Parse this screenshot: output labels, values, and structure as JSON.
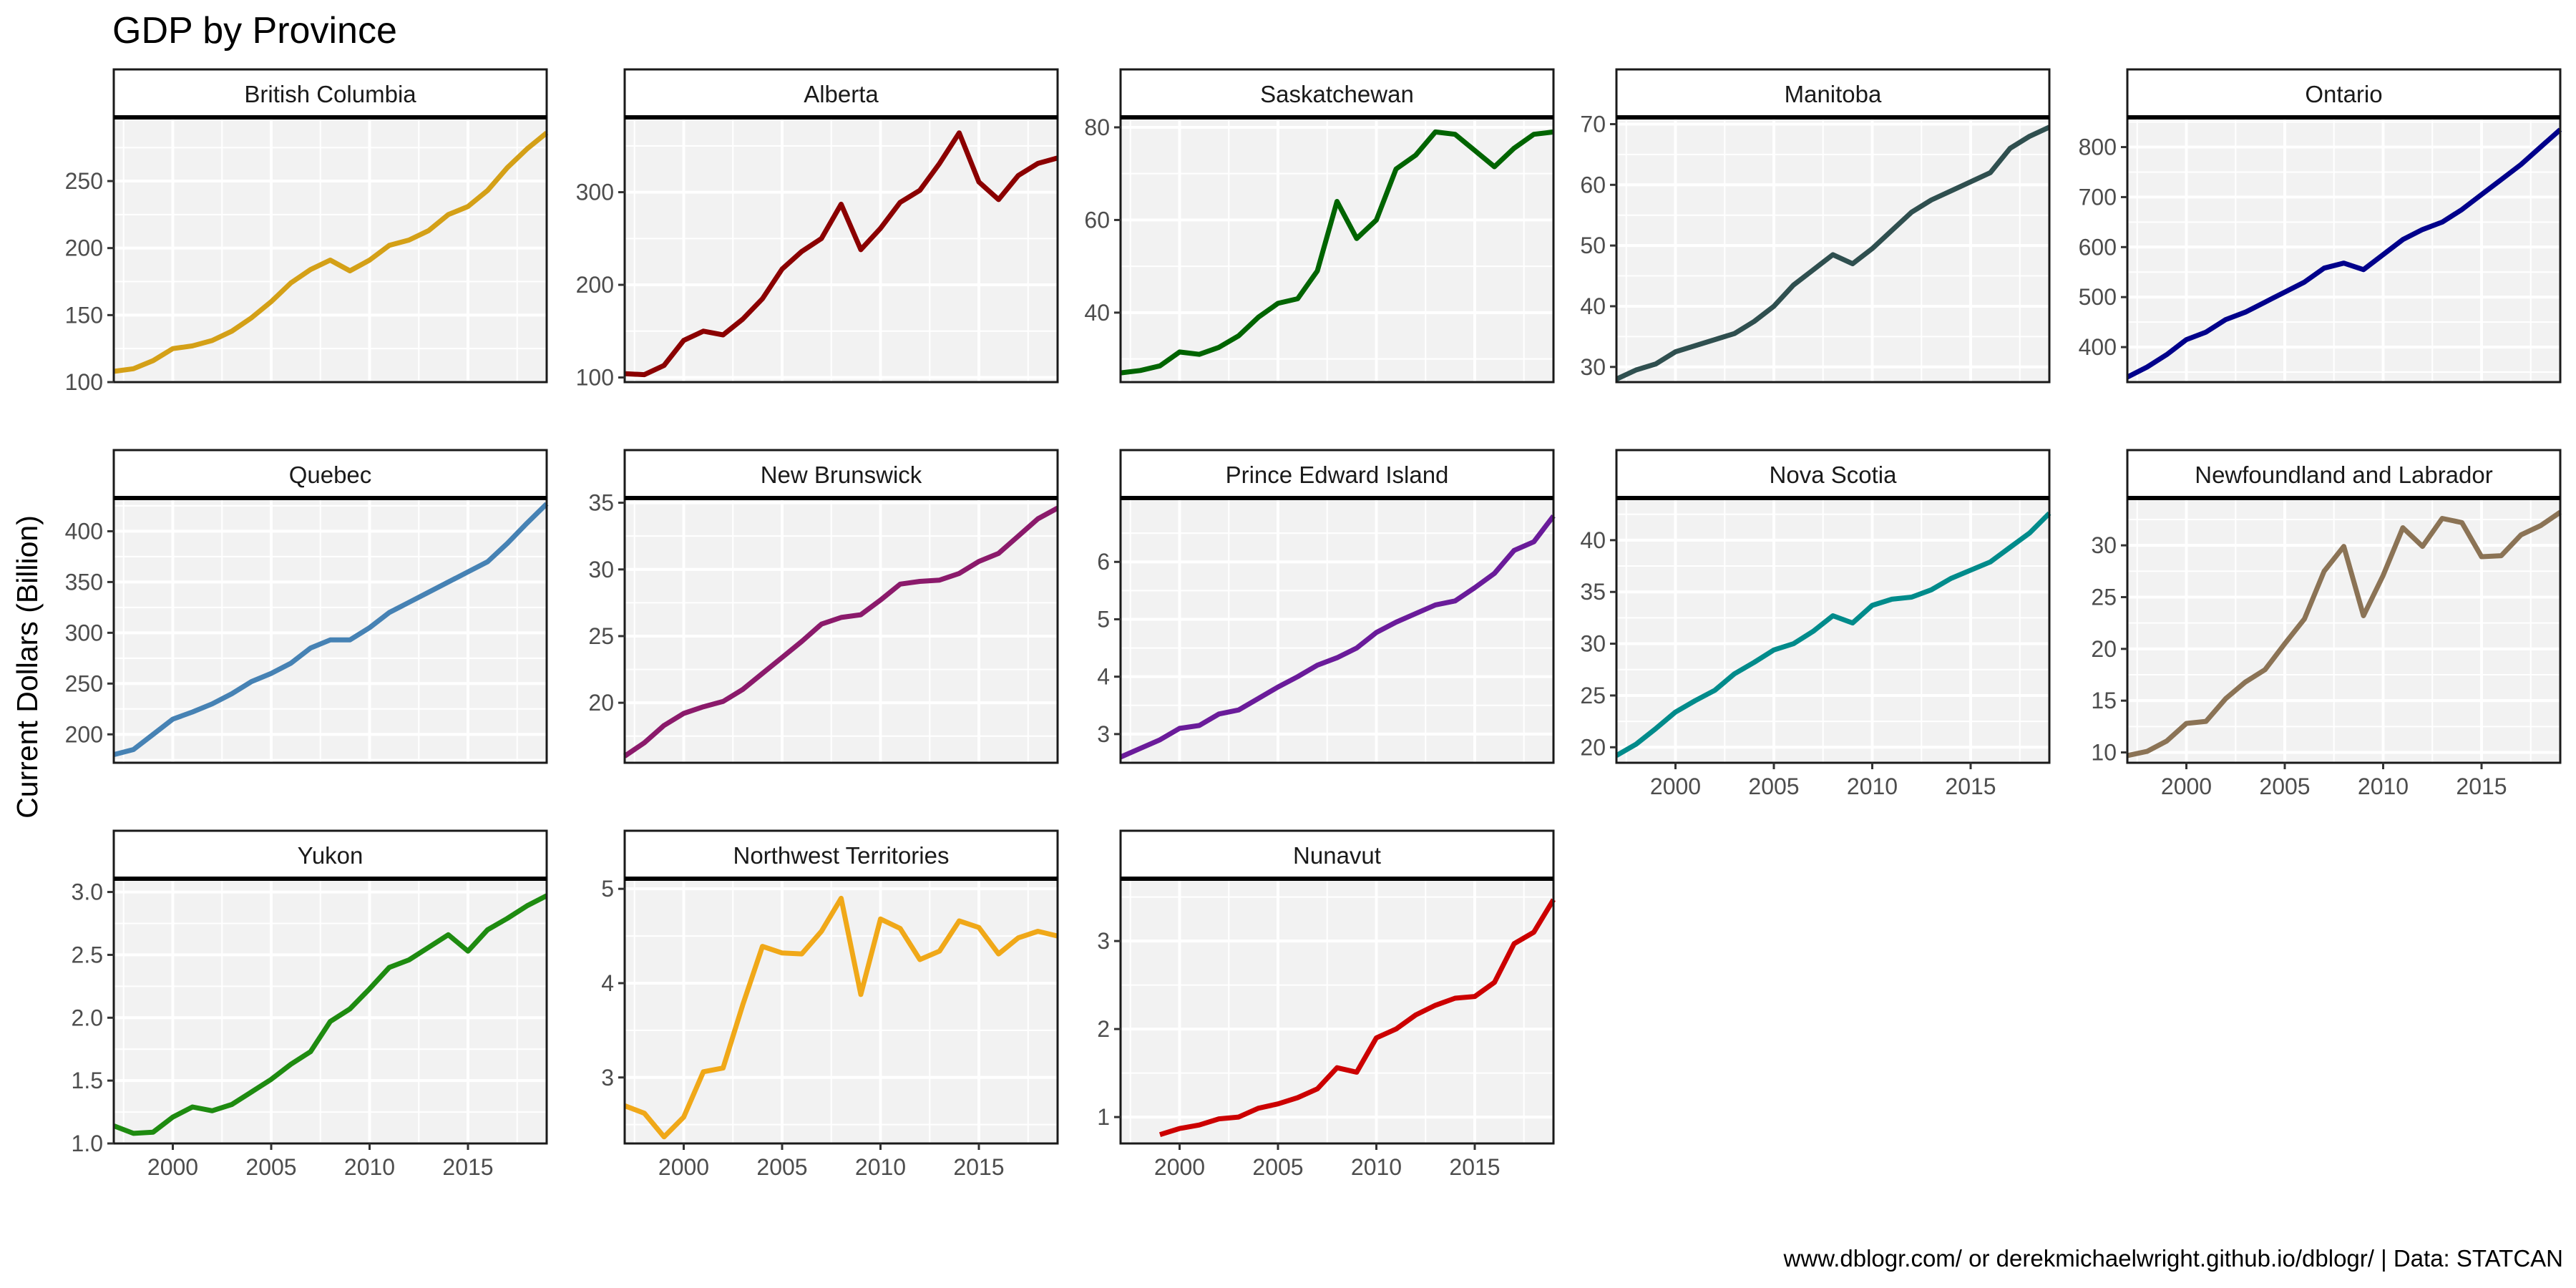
{
  "chart_data": {
    "type": "line",
    "title": "GDP by Province",
    "ylabel": "Current Dollars (Billion)",
    "xlabel": "",
    "caption": "www.dblogr.com/ or derekmichaelwright.github.io/dblogr/ | Data: STATCAN",
    "x_range": [
      1997,
      2019
    ],
    "x_ticks": [
      2000,
      2005,
      2010,
      2015
    ],
    "grid": true,
    "legend": "none",
    "panels": [
      {
        "name": "British Columbia",
        "color": "#D4A017",
        "ylim": [
          100,
          297
        ],
        "y_ticks": [
          100,
          150,
          200,
          250
        ],
        "x": [
          1997,
          1998,
          1999,
          2000,
          2001,
          2002,
          2003,
          2004,
          2005,
          2006,
          2007,
          2008,
          2009,
          2010,
          2011,
          2012,
          2013,
          2014,
          2015,
          2016,
          2017,
          2018,
          2019
        ],
        "values": [
          108,
          110,
          116,
          125,
          127,
          131,
          138,
          148,
          160,
          174,
          184,
          191,
          183,
          191,
          202,
          206,
          213,
          225,
          231,
          243,
          260,
          274,
          286
        ]
      },
      {
        "name": "Alberta",
        "color": "#8B0000",
        "ylim": [
          95,
          380
        ],
        "y_ticks": [
          100,
          200,
          300
        ],
        "x": [
          1997,
          1998,
          1999,
          2000,
          2001,
          2002,
          2003,
          2004,
          2005,
          2006,
          2007,
          2008,
          2009,
          2010,
          2011,
          2012,
          2013,
          2014,
          2015,
          2016,
          2017,
          2018,
          2019
        ],
        "values": [
          104,
          103,
          113,
          140,
          150,
          146,
          163,
          185,
          217,
          236,
          250,
          287,
          238,
          261,
          289,
          302,
          331,
          364,
          311,
          292,
          318,
          331,
          337
        ]
      },
      {
        "name": "Saskatchewan",
        "color": "#006400",
        "ylim": [
          25,
          82
        ],
        "y_ticks": [
          40,
          60,
          80
        ],
        "x": [
          1997,
          1998,
          1999,
          2000,
          2001,
          2002,
          2003,
          2004,
          2005,
          2006,
          2007,
          2008,
          2009,
          2010,
          2011,
          2012,
          2013,
          2014,
          2015,
          2016,
          2017,
          2018,
          2019
        ],
        "values": [
          27,
          27.5,
          28.5,
          31.5,
          31,
          32.5,
          35,
          39,
          42,
          43,
          49,
          64,
          56,
          60,
          71,
          74,
          79,
          78.5,
          75,
          71.5,
          75.5,
          78.5,
          79
        ]
      },
      {
        "name": "Manitoba",
        "color": "#2F4F4F",
        "ylim": [
          27.5,
          71
        ],
        "y_ticks": [
          30,
          40,
          50,
          60,
          70
        ],
        "x": [
          1997,
          1998,
          1999,
          2000,
          2001,
          2002,
          2003,
          2004,
          2005,
          2006,
          2007,
          2008,
          2009,
          2010,
          2011,
          2012,
          2013,
          2014,
          2015,
          2016,
          2017,
          2018,
          2019
        ],
        "values": [
          28,
          29.5,
          30.5,
          32.5,
          33.5,
          34.5,
          35.5,
          37.5,
          40,
          43.5,
          46,
          48.5,
          47,
          49.5,
          52.5,
          55.5,
          57.5,
          59,
          60.5,
          62,
          66,
          68,
          69.5
        ]
      },
      {
        "name": "Ontario",
        "color": "#00008B",
        "ylim": [
          330,
          858
        ],
        "y_ticks": [
          400,
          500,
          600,
          700,
          800
        ],
        "x": [
          1997,
          1998,
          1999,
          2000,
          2001,
          2002,
          2003,
          2004,
          2005,
          2006,
          2007,
          2008,
          2009,
          2010,
          2011,
          2012,
          2013,
          2014,
          2015,
          2016,
          2017,
          2018,
          2019
        ],
        "values": [
          340,
          360,
          385,
          415,
          430,
          455,
          470,
          490,
          510,
          530,
          558,
          568,
          555,
          585,
          615,
          635,
          650,
          675,
          705,
          735,
          765,
          800,
          835
        ]
      },
      {
        "name": "Quebec",
        "color": "#4682B4",
        "ylim": [
          172,
          432
        ],
        "y_ticks": [
          200,
          250,
          300,
          350,
          400
        ],
        "x": [
          1997,
          1998,
          1999,
          2000,
          2001,
          2002,
          2003,
          2004,
          2005,
          2006,
          2007,
          2008,
          2009,
          2010,
          2011,
          2012,
          2013,
          2014,
          2015,
          2016,
          2017,
          2018,
          2019
        ],
        "values": [
          180,
          185,
          200,
          215,
          222,
          230,
          240,
          252,
          260,
          270,
          285,
          293,
          293,
          305,
          320,
          330,
          340,
          350,
          360,
          370,
          388,
          408,
          427
        ]
      },
      {
        "name": "New Brunswick",
        "color": "#8B1A6B",
        "ylim": [
          15.5,
          35.3
        ],
        "y_ticks": [
          20,
          25,
          30,
          35
        ],
        "x": [
          1997,
          1998,
          1999,
          2000,
          2001,
          2002,
          2003,
          2004,
          2005,
          2006,
          2007,
          2008,
          2009,
          2010,
          2011,
          2012,
          2013,
          2014,
          2015,
          2016,
          2017,
          2018,
          2019
        ],
        "values": [
          16,
          17,
          18.3,
          19.2,
          19.7,
          20.1,
          21,
          22.2,
          23.4,
          24.6,
          25.9,
          26.4,
          26.6,
          27.7,
          28.9,
          29.1,
          29.2,
          29.7,
          30.6,
          31.2,
          32.5,
          33.8,
          34.6
        ]
      },
      {
        "name": "Prince Edward Island",
        "color": "#6A1B9A",
        "ylim": [
          2.5,
          7.1
        ],
        "y_ticks": [
          3,
          4,
          5,
          6
        ],
        "x": [
          1997,
          1998,
          1999,
          2000,
          2001,
          2002,
          2003,
          2004,
          2005,
          2006,
          2007,
          2008,
          2009,
          2010,
          2011,
          2012,
          2013,
          2014,
          2015,
          2016,
          2017,
          2018,
          2019
        ],
        "values": [
          2.6,
          2.75,
          2.9,
          3.1,
          3.15,
          3.35,
          3.42,
          3.62,
          3.82,
          4,
          4.2,
          4.33,
          4.5,
          4.77,
          4.95,
          5.1,
          5.25,
          5.32,
          5.55,
          5.8,
          6.2,
          6.35,
          6.8
        ]
      },
      {
        "name": "Nova Scotia",
        "color": "#008B8B",
        "ylim": [
          18.5,
          44
        ],
        "y_ticks": [
          20,
          25,
          30,
          35,
          40
        ],
        "x": [
          1997,
          1998,
          1999,
          2000,
          2001,
          2002,
          2003,
          2004,
          2005,
          2006,
          2007,
          2008,
          2009,
          2010,
          2011,
          2012,
          2013,
          2014,
          2015,
          2016,
          2017,
          2018,
          2019
        ],
        "values": [
          19.2,
          20.3,
          21.8,
          23.4,
          24.5,
          25.5,
          27.1,
          28.2,
          29.4,
          30,
          31.2,
          32.7,
          32,
          33.7,
          34.3,
          34.5,
          35.2,
          36.3,
          37.1,
          37.9,
          39.3,
          40.7,
          42.6
        ]
      },
      {
        "name": "Newfoundland and Labrador",
        "color": "#8B7355",
        "ylim": [
          9,
          34.5
        ],
        "y_ticks": [
          10,
          15,
          20,
          25,
          30
        ],
        "x": [
          1997,
          1998,
          1999,
          2000,
          2001,
          2002,
          2003,
          2004,
          2005,
          2006,
          2007,
          2008,
          2009,
          2010,
          2011,
          2012,
          2013,
          2014,
          2015,
          2016,
          2017,
          2018,
          2019
        ],
        "values": [
          9.7,
          10.1,
          11.1,
          12.8,
          13,
          15.2,
          16.8,
          18,
          20.5,
          22.9,
          27.5,
          29.9,
          23.2,
          27.1,
          31.7,
          29.9,
          32.6,
          32.2,
          28.9,
          29,
          31,
          31.9,
          33.2
        ]
      },
      {
        "name": "Yukon",
        "color": "#1E8B10",
        "ylim": [
          1.0,
          3.1
        ],
        "y_ticks": [
          1.0,
          1.5,
          2.0,
          2.5,
          3.0
        ],
        "x": [
          1997,
          1998,
          1999,
          2000,
          2001,
          2002,
          2003,
          2004,
          2005,
          2006,
          2007,
          2008,
          2009,
          2010,
          2011,
          2012,
          2013,
          2014,
          2015,
          2016,
          2017,
          2018,
          2019
        ],
        "values": [
          1.14,
          1.08,
          1.09,
          1.21,
          1.29,
          1.26,
          1.31,
          1.41,
          1.51,
          1.63,
          1.73,
          1.97,
          2.07,
          2.23,
          2.4,
          2.46,
          2.56,
          2.66,
          2.53,
          2.7,
          2.79,
          2.89,
          2.97
        ]
      },
      {
        "name": "Northwest Territories",
        "color": "#F0A818",
        "ylim": [
          2.3,
          5.1
        ],
        "y_ticks": [
          3,
          4,
          5
        ],
        "x": [
          1997,
          1998,
          1999,
          2000,
          2001,
          2002,
          2003,
          2004,
          2005,
          2006,
          2007,
          2008,
          2009,
          2010,
          2011,
          2012,
          2013,
          2014,
          2015,
          2016,
          2017,
          2018,
          2019
        ],
        "values": [
          2.7,
          2.62,
          2.37,
          2.58,
          3.06,
          3.1,
          3.77,
          4.39,
          4.32,
          4.31,
          4.55,
          4.9,
          3.88,
          4.68,
          4.58,
          4.25,
          4.34,
          4.66,
          4.59,
          4.31,
          4.48,
          4.55,
          4.5
        ]
      },
      {
        "name": "Nunavut",
        "color": "#CC0000",
        "ylim": [
          0.7,
          3.7
        ],
        "y_ticks": [
          1,
          2,
          3
        ],
        "x": [
          1999,
          2000,
          2001,
          2002,
          2003,
          2004,
          2005,
          2006,
          2007,
          2008,
          2009,
          2010,
          2011,
          2012,
          2013,
          2014,
          2015,
          2016,
          2017,
          2018,
          2019
        ],
        "values": [
          0.8,
          0.87,
          0.91,
          0.98,
          1,
          1.1,
          1.15,
          1.22,
          1.32,
          1.56,
          1.51,
          1.9,
          2,
          2.16,
          2.27,
          2.35,
          2.37,
          2.53,
          2.97,
          3.1,
          3.47
        ]
      }
    ]
  }
}
